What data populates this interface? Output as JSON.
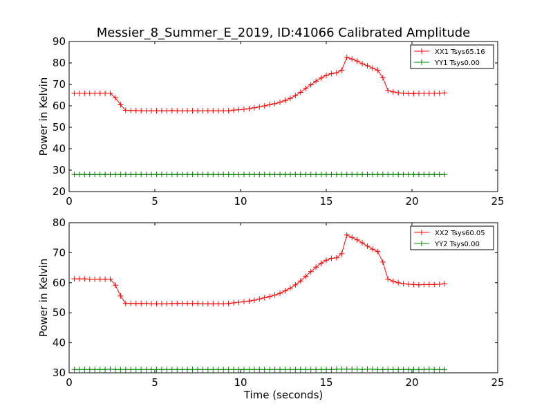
{
  "chart_data": [
    {
      "type": "line",
      "title": "Messier_8_Summer_E_2019, ID:41066 Calibrated Amplitude",
      "xlabel": "",
      "ylabel": "Power in Kelvin",
      "xlim": [
        0,
        25
      ],
      "ylim": [
        20,
        90
      ],
      "xticks": [
        0,
        5,
        10,
        15,
        20,
        25
      ],
      "yticks": [
        20,
        30,
        40,
        50,
        60,
        70,
        80,
        90
      ],
      "grid": false,
      "legend_position": "top-right",
      "series": [
        {
          "name": "XX1 Tsys65.16",
          "color": "#ff0000",
          "marker": "+",
          "x": [
            0.3,
            0.6,
            0.9,
            1.2,
            1.5,
            1.8,
            2.1,
            2.4,
            2.7,
            3.0,
            3.3,
            3.6,
            3.9,
            4.2,
            4.5,
            4.8,
            5.1,
            5.4,
            5.7,
            6.0,
            6.3,
            6.6,
            6.9,
            7.2,
            7.5,
            7.8,
            8.1,
            8.4,
            8.7,
            9.0,
            9.3,
            9.6,
            9.9,
            10.2,
            10.5,
            10.8,
            11.1,
            11.4,
            11.7,
            12.0,
            12.3,
            12.6,
            12.9,
            13.2,
            13.5,
            13.8,
            14.1,
            14.4,
            14.7,
            15.0,
            15.3,
            15.6,
            15.9,
            16.2,
            16.5,
            16.8,
            17.1,
            17.4,
            17.7,
            18.0,
            18.3,
            18.6,
            18.9,
            19.2,
            19.5,
            19.8,
            20.1,
            20.4,
            20.7,
            21.0,
            21.3,
            21.6,
            21.9
          ],
          "y": [
            65.8,
            65.8,
            65.8,
            65.8,
            65.8,
            65.8,
            65.8,
            65.8,
            63.7,
            60.5,
            57.9,
            57.8,
            57.8,
            57.7,
            57.7,
            57.7,
            57.7,
            57.7,
            57.7,
            57.8,
            57.7,
            57.7,
            57.7,
            57.7,
            57.7,
            57.7,
            57.7,
            57.7,
            57.7,
            57.7,
            57.7,
            58.0,
            58.2,
            58.4,
            58.7,
            59.1,
            59.5,
            60.0,
            60.5,
            61.0,
            61.7,
            62.5,
            63.5,
            64.8,
            66.3,
            68.1,
            69.8,
            71.5,
            73.0,
            74.2,
            75.0,
            75.4,
            76.6,
            82.6,
            81.8,
            80.9,
            79.6,
            78.7,
            77.6,
            76.6,
            73.1,
            67.1,
            66.5,
            66.1,
            65.9,
            65.7,
            65.7,
            65.8,
            65.8,
            65.8,
            65.8,
            65.9,
            66.0
          ]
        },
        {
          "name": "YY1 Tsys0.00",
          "color": "#008000",
          "marker": "+",
          "x": [
            0.3,
            0.6,
            0.9,
            1.2,
            1.5,
            1.8,
            2.1,
            2.4,
            2.7,
            3.0,
            3.3,
            3.6,
            3.9,
            4.2,
            4.5,
            4.8,
            5.1,
            5.4,
            5.7,
            6.0,
            6.3,
            6.6,
            6.9,
            7.2,
            7.5,
            7.8,
            8.1,
            8.4,
            8.7,
            9.0,
            9.3,
            9.6,
            9.9,
            10.2,
            10.5,
            10.8,
            11.1,
            11.4,
            11.7,
            12.0,
            12.3,
            12.6,
            12.9,
            13.2,
            13.5,
            13.8,
            14.1,
            14.4,
            14.7,
            15.0,
            15.3,
            15.6,
            15.9,
            16.2,
            16.5,
            16.8,
            17.1,
            17.4,
            17.7,
            18.0,
            18.3,
            18.6,
            18.9,
            19.2,
            19.5,
            19.8,
            20.1,
            20.4,
            20.7,
            21.0,
            21.3,
            21.6,
            21.9
          ],
          "y": [
            28.0,
            28.0,
            28.0,
            28.0,
            28.0,
            28.0,
            28.0,
            28.0,
            28.0,
            28.0,
            28.0,
            28.0,
            28.0,
            28.0,
            28.0,
            28.0,
            28.0,
            28.0,
            28.0,
            28.0,
            28.0,
            28.0,
            28.0,
            28.0,
            28.0,
            28.0,
            28.0,
            28.0,
            28.0,
            28.0,
            28.0,
            28.0,
            27.9,
            28.0,
            28.0,
            28.0,
            28.0,
            28.0,
            28.0,
            28.0,
            28.0,
            28.0,
            28.0,
            28.0,
            28.0,
            28.0,
            28.0,
            28.0,
            28.0,
            28.0,
            28.0,
            28.0,
            28.0,
            28.0,
            28.0,
            28.0,
            28.0,
            28.0,
            28.0,
            28.0,
            28.0,
            28.0,
            28.0,
            28.0,
            28.0,
            28.0,
            28.0,
            28.0,
            28.0,
            28.0,
            28.0,
            28.0,
            28.0
          ]
        }
      ]
    },
    {
      "type": "line",
      "title": "",
      "xlabel": "Time (seconds)",
      "ylabel": "Power in Kelvin",
      "xlim": [
        0,
        25
      ],
      "ylim": [
        30,
        80
      ],
      "xticks": [
        0,
        5,
        10,
        15,
        20,
        25
      ],
      "yticks": [
        30,
        40,
        50,
        60,
        70,
        80
      ],
      "grid": false,
      "legend_position": "top-right",
      "series": [
        {
          "name": "XX2 Tsys60.05",
          "color": "#ff0000",
          "marker": "+",
          "x": [
            0.3,
            0.6,
            0.9,
            1.2,
            1.5,
            1.8,
            2.1,
            2.4,
            2.7,
            3.0,
            3.3,
            3.6,
            3.9,
            4.2,
            4.5,
            4.8,
            5.1,
            5.4,
            5.7,
            6.0,
            6.3,
            6.6,
            6.9,
            7.2,
            7.5,
            7.8,
            8.1,
            8.4,
            8.7,
            9.0,
            9.3,
            9.6,
            9.9,
            10.2,
            10.5,
            10.8,
            11.1,
            11.4,
            11.7,
            12.0,
            12.3,
            12.6,
            12.9,
            13.2,
            13.5,
            13.8,
            14.1,
            14.4,
            14.7,
            15.0,
            15.3,
            15.6,
            15.9,
            16.2,
            16.5,
            16.8,
            17.1,
            17.4,
            17.7,
            18.0,
            18.3,
            18.6,
            18.9,
            19.2,
            19.5,
            19.8,
            20.1,
            20.4,
            20.7,
            21.0,
            21.3,
            21.6,
            21.9
          ],
          "y": [
            61.3,
            61.3,
            61.3,
            61.2,
            61.2,
            61.2,
            61.2,
            61.2,
            59.2,
            55.6,
            53.1,
            53.1,
            53.1,
            53.1,
            53.1,
            53.0,
            53.0,
            53.0,
            53.0,
            53.1,
            53.1,
            53.1,
            53.1,
            53.1,
            53.1,
            53.0,
            53.0,
            53.0,
            53.0,
            53.0,
            53.1,
            53.3,
            53.5,
            53.7,
            53.9,
            54.2,
            54.6,
            55.0,
            55.4,
            55.9,
            56.5,
            57.3,
            58.2,
            59.3,
            60.6,
            62.1,
            63.7,
            65.2,
            66.5,
            67.5,
            68.1,
            68.3,
            69.7,
            75.9,
            75.1,
            74.3,
            73.3,
            72.2,
            71.2,
            70.4,
            66.9,
            61.2,
            60.5,
            60.0,
            59.7,
            59.5,
            59.4,
            59.3,
            59.4,
            59.4,
            59.4,
            59.5,
            59.7
          ]
        },
        {
          "name": "YY2 Tsys0.00",
          "color": "#008000",
          "marker": "+",
          "x": [
            0.3,
            0.6,
            0.9,
            1.2,
            1.5,
            1.8,
            2.1,
            2.4,
            2.7,
            3.0,
            3.3,
            3.6,
            3.9,
            4.2,
            4.5,
            4.8,
            5.1,
            5.4,
            5.7,
            6.0,
            6.3,
            6.6,
            6.9,
            7.2,
            7.5,
            7.8,
            8.1,
            8.4,
            8.7,
            9.0,
            9.3,
            9.6,
            9.9,
            10.2,
            10.5,
            10.8,
            11.1,
            11.4,
            11.7,
            12.0,
            12.3,
            12.6,
            12.9,
            13.2,
            13.5,
            13.8,
            14.1,
            14.4,
            14.7,
            15.0,
            15.3,
            15.6,
            15.9,
            16.2,
            16.5,
            16.8,
            17.1,
            17.4,
            17.7,
            18.0,
            18.3,
            18.6,
            18.9,
            19.2,
            19.5,
            19.8,
            20.1,
            20.4,
            20.7,
            21.0,
            21.3,
            21.6,
            21.9
          ],
          "y": [
            31.1,
            31.1,
            31.1,
            31.1,
            31.1,
            31.1,
            31.1,
            31.2,
            31.1,
            31.1,
            31.1,
            31.1,
            31.1,
            31.1,
            31.1,
            31.1,
            31.1,
            31.1,
            31.1,
            31.1,
            31.1,
            31.1,
            31.1,
            31.1,
            31.1,
            31.1,
            31.1,
            31.1,
            31.1,
            31.1,
            31.1,
            31.1,
            31.1,
            31.1,
            31.1,
            31.1,
            31.1,
            31.1,
            31.1,
            31.1,
            31.1,
            31.1,
            31.1,
            31.1,
            31.1,
            31.1,
            31.1,
            31.1,
            31.1,
            31.1,
            31.1,
            31.2,
            31.2,
            31.2,
            31.2,
            31.2,
            31.1,
            31.2,
            31.2,
            31.1,
            31.1,
            31.1,
            31.1,
            31.1,
            31.1,
            31.1,
            31.1,
            31.1,
            31.1,
            31.2,
            31.1,
            31.1,
            31.1
          ]
        }
      ]
    }
  ]
}
